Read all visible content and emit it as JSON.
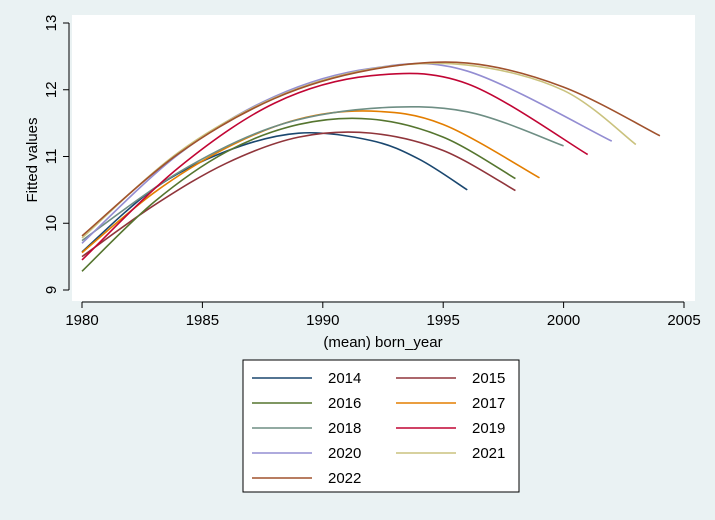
{
  "chart_data": {
    "type": "line",
    "xlabel": "(mean) born_year",
    "ylabel": "Fitted values",
    "xlim": [
      1980,
      2005
    ],
    "ylim": [
      9,
      13
    ],
    "x_ticks": [
      1980,
      1985,
      1990,
      1995,
      2000,
      2005
    ],
    "y_ticks": [
      9,
      10,
      11,
      12,
      13
    ],
    "grid": false,
    "legend_position": "bottom",
    "series": [
      {
        "name": "2014",
        "color": "#1a476f",
        "x": [
          1980,
          1983,
          1986,
          1989,
          1992,
          1994,
          1996
        ],
        "y": [
          9.57,
          10.52,
          11.08,
          11.35,
          11.24,
          10.96,
          10.5
        ]
      },
      {
        "name": "2015",
        "color": "#90353b",
        "x": [
          1980,
          1983,
          1986,
          1989,
          1992,
          1995,
          1998
        ],
        "y": [
          9.5,
          10.27,
          10.9,
          11.29,
          11.35,
          11.09,
          10.49
        ]
      },
      {
        "name": "2016",
        "color": "#55752f",
        "x": [
          1980,
          1983,
          1986,
          1989,
          1992,
          1995,
          1998
        ],
        "y": [
          9.28,
          10.32,
          11.07,
          11.48,
          11.56,
          11.29,
          10.67
        ]
      },
      {
        "name": "2017",
        "color": "#e37e00",
        "x": [
          1980,
          1983,
          1986,
          1989,
          1992,
          1995,
          1999
        ],
        "y": [
          9.56,
          10.46,
          11.13,
          11.56,
          11.68,
          11.48,
          10.68
        ]
      },
      {
        "name": "2018",
        "color": "#6e8e84",
        "x": [
          1980,
          1984,
          1988,
          1992,
          1996,
          2000
        ],
        "y": [
          9.74,
          10.76,
          11.45,
          11.72,
          11.67,
          11.16
        ]
      },
      {
        "name": "2019",
        "color": "#c10534",
        "x": [
          1980,
          1984,
          1988,
          1992,
          1996,
          2001
        ],
        "y": [
          9.45,
          10.83,
          11.8,
          12.21,
          12.09,
          11.03
        ]
      },
      {
        "name": "2020",
        "color": "#938dd2",
        "x": [
          1980,
          1984,
          1988,
          1992,
          1996,
          2002
        ],
        "y": [
          9.7,
          11.03,
          11.9,
          12.32,
          12.28,
          11.23
        ]
      },
      {
        "name": "2021",
        "color": "#cac27e",
        "x": [
          1980,
          1984,
          1988,
          1992,
          1996,
          2000,
          2003
        ],
        "y": [
          9.78,
          11.06,
          11.88,
          12.31,
          12.37,
          11.99,
          11.18
        ]
      },
      {
        "name": "2022",
        "color": "#a0522d",
        "x": [
          1980,
          1984,
          1988,
          1992,
          1996,
          2000,
          2004
        ],
        "y": [
          9.81,
          11.04,
          11.87,
          12.3,
          12.4,
          12.04,
          11.31
        ]
      }
    ]
  }
}
